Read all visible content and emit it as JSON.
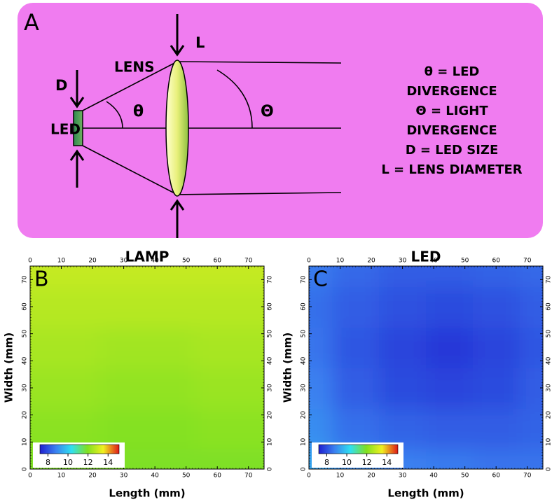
{
  "diagram": {
    "panel_label": "A",
    "lens": "LENS",
    "lens_diameter": "L",
    "led_size": "D",
    "led": "LED",
    "small_angle": "θ",
    "large_angle": "Θ",
    "legend_lines": [
      "θ = LED",
      "DIVERGENCE",
      "Θ = LIGHT",
      "DIVERGENCE",
      "D = LED SIZE",
      "L = LENS DIAMETER"
    ]
  },
  "chart_data": [
    {
      "type": "contour",
      "panel_label": "B",
      "title": "LAMP",
      "xlabel": "Length (mm)",
      "ylabel": "Width (mm)",
      "x": [
        0,
        15,
        30,
        45,
        60,
        75
      ],
      "y": [
        0,
        15,
        30,
        45,
        60,
        75
      ],
      "z": [
        [
          11.9,
          11.9,
          11.9,
          11.9,
          11.9,
          11.9
        ],
        [
          12.1,
          12.1,
          12.0,
          12.0,
          12.1,
          12.1
        ],
        [
          12.3,
          12.3,
          12.2,
          12.2,
          12.3,
          12.3
        ],
        [
          12.5,
          12.5,
          12.4,
          12.4,
          12.5,
          12.5
        ],
        [
          12.7,
          12.7,
          12.7,
          12.7,
          12.7,
          12.7
        ],
        [
          12.9,
          12.9,
          12.9,
          12.9,
          12.9,
          12.9
        ]
      ],
      "xlim": [
        0,
        75
      ],
      "ylim": [
        0,
        75
      ],
      "xticks": [
        0,
        10,
        20,
        30,
        40,
        50,
        60,
        70
      ],
      "yticks": [
        0,
        10,
        20,
        30,
        40,
        50,
        60,
        70
      ],
      "clim": [
        7.2,
        15.1
      ],
      "cticks": [
        8,
        10,
        12,
        14
      ],
      "colormap": [
        "#2020d0",
        "#3a80f0",
        "#30e0f0",
        "#80e020",
        "#f0f020",
        "#e01818"
      ]
    },
    {
      "type": "contour",
      "panel_label": "C",
      "title": "LED",
      "xlabel": "Length (mm)",
      "ylabel": "Width (mm)",
      "x": [
        0,
        15,
        30,
        45,
        60,
        75
      ],
      "y": [
        0,
        15,
        30,
        45,
        60,
        75
      ],
      "z": [
        [
          9.4,
          9.0,
          8.8,
          8.7,
          8.6,
          8.6
        ],
        [
          9.0,
          8.5,
          8.3,
          8.2,
          8.2,
          8.3
        ],
        [
          8.8,
          8.2,
          7.9,
          7.8,
          7.9,
          8.2
        ],
        [
          8.6,
          8.1,
          7.8,
          7.6,
          7.8,
          8.1
        ],
        [
          8.5,
          8.2,
          8.0,
          7.9,
          8.0,
          8.2
        ],
        [
          8.7,
          8.4,
          8.2,
          8.2,
          8.3,
          8.4
        ]
      ],
      "xlim": [
        0,
        75
      ],
      "ylim": [
        0,
        75
      ],
      "xticks": [
        0,
        10,
        20,
        30,
        40,
        50,
        60,
        70
      ],
      "yticks": [
        0,
        10,
        20,
        30,
        40,
        50,
        60,
        70
      ],
      "clim": [
        7.2,
        15.1
      ],
      "cticks": [
        8,
        10,
        12,
        14
      ],
      "colormap": [
        "#2020d0",
        "#3a80f0",
        "#30e0f0",
        "#80e020",
        "#f0f020",
        "#e01818"
      ]
    }
  ]
}
